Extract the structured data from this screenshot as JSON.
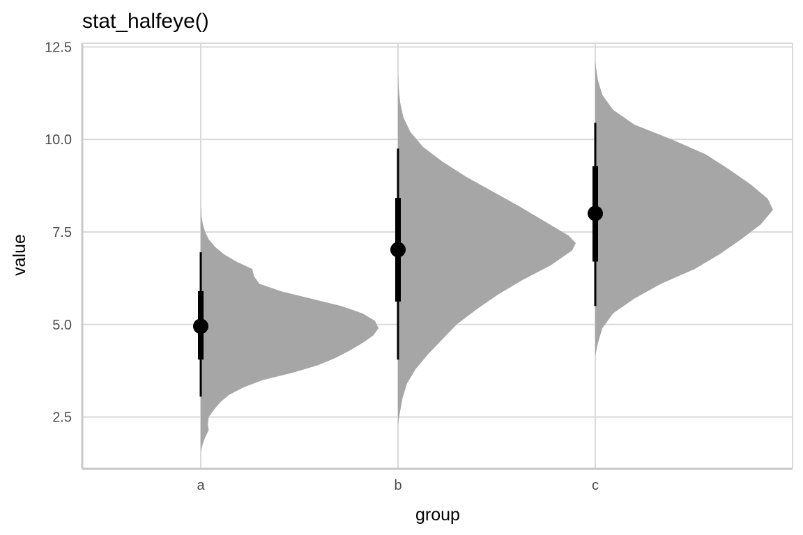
{
  "chart_data": {
    "type": "halfeye",
    "title": "stat_halfeye()",
    "xlabel": "group",
    "ylabel": "value",
    "categories": [
      "a",
      "b",
      "c"
    ],
    "ylim": [
      1.1,
      12.6
    ],
    "yticks": [
      2.5,
      5.0,
      7.5,
      10.0,
      12.5
    ],
    "ytick_labels": [
      "2.5",
      "5.0",
      "7.5",
      "10.0",
      "12.5"
    ],
    "grid": true,
    "colors": {
      "density": "#a6a6a6",
      "interval": "#000000",
      "grid": "#d9d9d9",
      "panel_border": "#c8c8c8"
    },
    "series": [
      {
        "category": "a",
        "median": 4.95,
        "interval_66": [
          4.05,
          5.9
        ],
        "interval_95": [
          3.05,
          6.95
        ],
        "density": [
          [
            1.55,
            0.0
          ],
          [
            1.75,
            0.01
          ],
          [
            1.95,
            0.025
          ],
          [
            2.15,
            0.045
          ],
          [
            2.3,
            0.04
          ],
          [
            2.5,
            0.045
          ],
          [
            2.7,
            0.075
          ],
          [
            2.9,
            0.11
          ],
          [
            3.1,
            0.16
          ],
          [
            3.3,
            0.24
          ],
          [
            3.5,
            0.35
          ],
          [
            3.7,
            0.52
          ],
          [
            3.9,
            0.66
          ],
          [
            4.1,
            0.76
          ],
          [
            4.3,
            0.84
          ],
          [
            4.5,
            0.91
          ],
          [
            4.7,
            0.97
          ],
          [
            4.9,
            1.0
          ],
          [
            5.1,
            0.98
          ],
          [
            5.3,
            0.91
          ],
          [
            5.5,
            0.79
          ],
          [
            5.7,
            0.62
          ],
          [
            5.9,
            0.45
          ],
          [
            6.1,
            0.33
          ],
          [
            6.3,
            0.3
          ],
          [
            6.5,
            0.29
          ],
          [
            6.7,
            0.2
          ],
          [
            6.9,
            0.13
          ],
          [
            7.1,
            0.08
          ],
          [
            7.3,
            0.045
          ],
          [
            7.5,
            0.025
          ],
          [
            7.7,
            0.012
          ],
          [
            7.9,
            0.005
          ],
          [
            8.2,
            0.0
          ]
        ]
      },
      {
        "category": "b",
        "median": 7.02,
        "interval_66": [
          5.62,
          8.42
        ],
        "interval_95": [
          4.05,
          9.75
        ],
        "density": [
          [
            2.3,
            0.0
          ],
          [
            2.6,
            0.01
          ],
          [
            3.0,
            0.025
          ],
          [
            3.4,
            0.05
          ],
          [
            3.8,
            0.1
          ],
          [
            4.2,
            0.17
          ],
          [
            4.6,
            0.25
          ],
          [
            5.0,
            0.33
          ],
          [
            5.4,
            0.44
          ],
          [
            5.8,
            0.56
          ],
          [
            6.2,
            0.7
          ],
          [
            6.6,
            0.86
          ],
          [
            7.0,
            0.98
          ],
          [
            7.2,
            1.0
          ],
          [
            7.4,
            0.96
          ],
          [
            7.8,
            0.82
          ],
          [
            8.2,
            0.68
          ],
          [
            8.6,
            0.53
          ],
          [
            9.0,
            0.38
          ],
          [
            9.4,
            0.25
          ],
          [
            9.8,
            0.14
          ],
          [
            10.2,
            0.07
          ],
          [
            10.6,
            0.03
          ],
          [
            11.0,
            0.012
          ],
          [
            11.4,
            0.004
          ],
          [
            11.8,
            0.0
          ]
        ]
      },
      {
        "category": "c",
        "median": 8.0,
        "interval_66": [
          6.7,
          9.28
        ],
        "interval_95": [
          5.5,
          10.45
        ],
        "density": [
          [
            4.15,
            0.0
          ],
          [
            4.5,
            0.015
          ],
          [
            4.9,
            0.04
          ],
          [
            5.3,
            0.1
          ],
          [
            5.7,
            0.22
          ],
          [
            6.1,
            0.37
          ],
          [
            6.5,
            0.56
          ],
          [
            6.9,
            0.7
          ],
          [
            7.3,
            0.82
          ],
          [
            7.7,
            0.93
          ],
          [
            8.1,
            1.0
          ],
          [
            8.4,
            0.97
          ],
          [
            8.8,
            0.87
          ],
          [
            9.2,
            0.75
          ],
          [
            9.6,
            0.62
          ],
          [
            10.0,
            0.43
          ],
          [
            10.4,
            0.22
          ],
          [
            10.8,
            0.1
          ],
          [
            11.2,
            0.04
          ],
          [
            11.6,
            0.015
          ],
          [
            12.1,
            0.0
          ]
        ]
      }
    ]
  }
}
